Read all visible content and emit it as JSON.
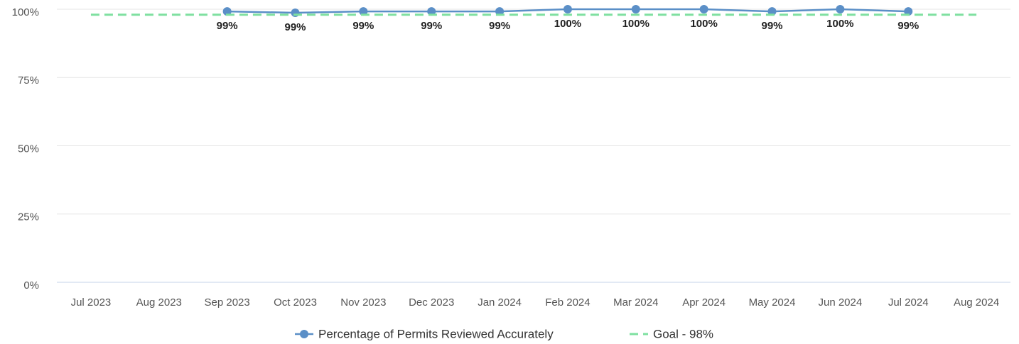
{
  "chart_data": {
    "type": "line",
    "categories": [
      "Jul 2023",
      "Aug 2023",
      "Sep 2023",
      "Oct 2023",
      "Nov 2023",
      "Dec 2023",
      "Jan 2024",
      "Feb 2024",
      "Mar 2024",
      "Apr 2024",
      "May 2024",
      "Jun 2024",
      "Jul 2024",
      "Aug 2024"
    ],
    "series": [
      {
        "name": "Percentage of Permits Reviewed Accurately",
        "color": "#5b8fc7",
        "values": [
          null,
          null,
          99.2,
          98.7,
          99.2,
          99.2,
          99.2,
          100,
          100,
          100,
          99.2,
          100,
          99.2,
          null
        ],
        "value_labels": [
          null,
          null,
          "99%",
          "99%",
          "99%",
          "99%",
          "99%",
          "100%",
          "100%",
          "100%",
          "99%",
          "100%",
          "99%",
          null
        ]
      },
      {
        "name": "Goal - 98%",
        "color": "#7ee0a0",
        "dashed": true,
        "values": [
          98,
          98,
          98,
          98,
          98,
          98,
          98,
          98,
          98,
          98,
          98,
          98,
          98,
          98
        ]
      }
    ],
    "ylim": [
      0,
      100
    ],
    "yticks": [
      {
        "value": 0,
        "label": "0%"
      },
      {
        "value": 25,
        "label": "25%"
      },
      {
        "value": 50,
        "label": "50%"
      },
      {
        "value": 75,
        "label": "75%"
      },
      {
        "value": 100,
        "label": "100%"
      }
    ],
    "grid": true,
    "legend": "bottom"
  }
}
